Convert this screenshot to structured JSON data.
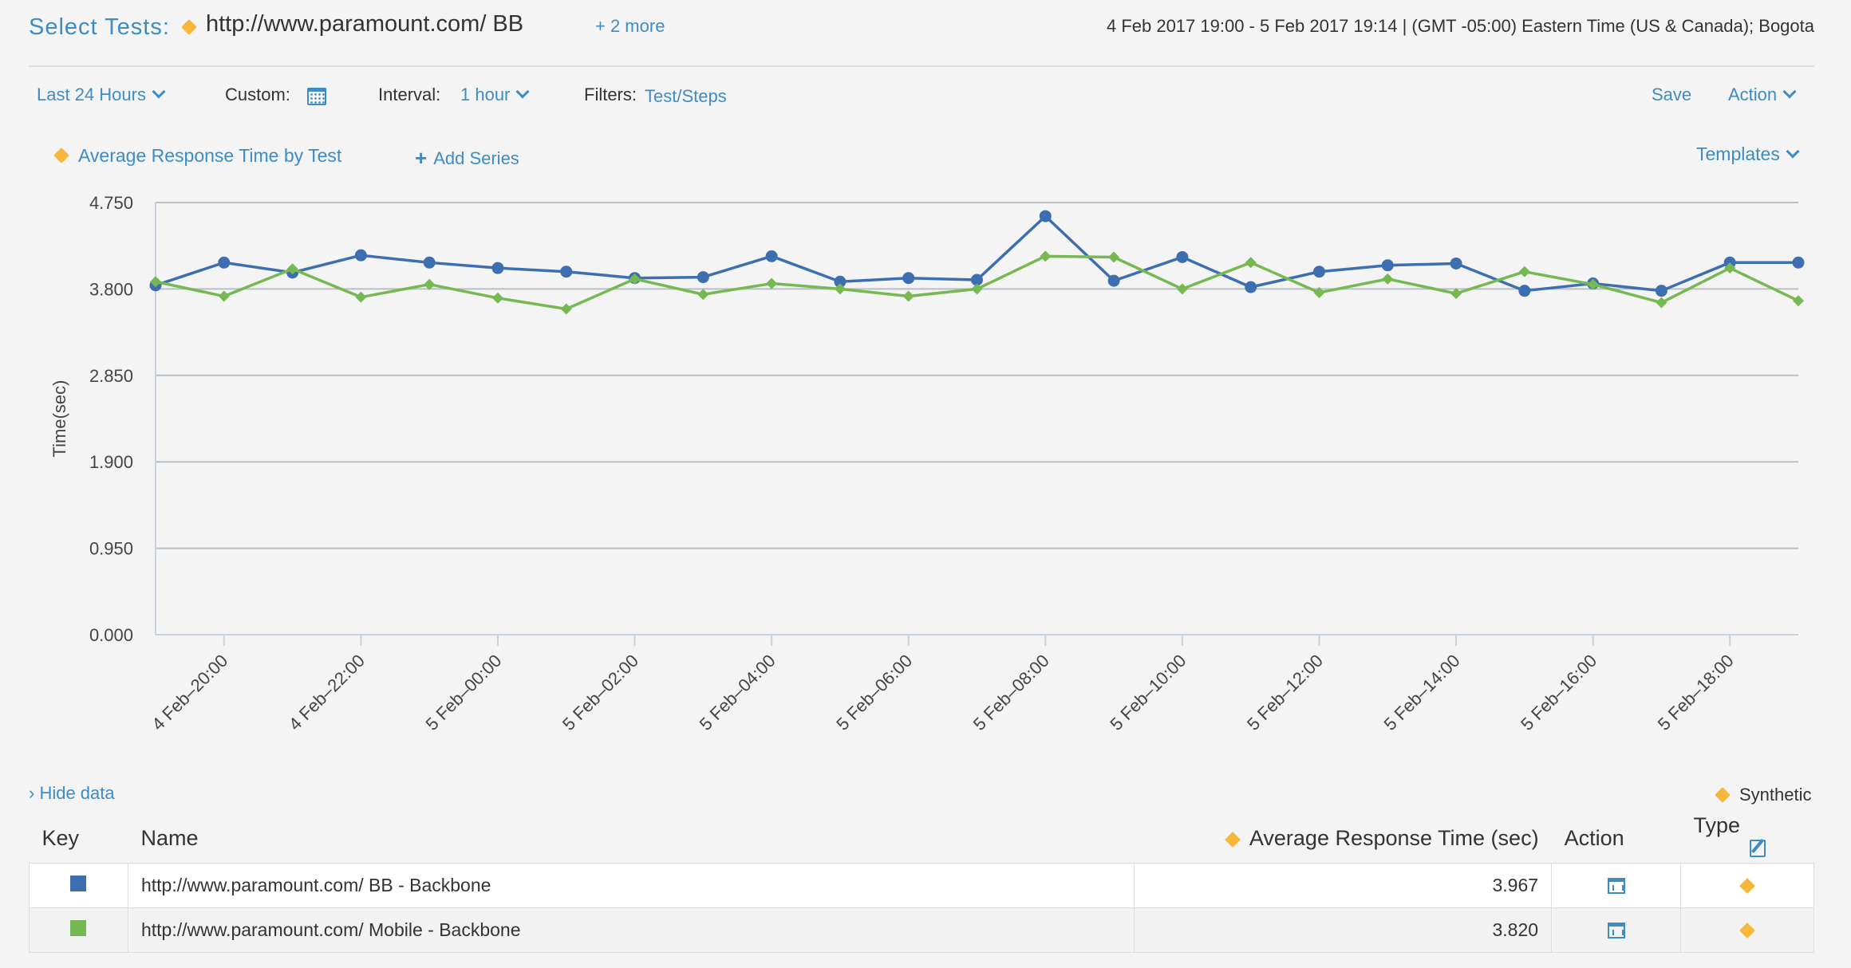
{
  "header": {
    "title_label": "Select Tests:",
    "selected_test": "http://www.paramount.com/ BB",
    "more_link": "+ 2 more",
    "date_range": "4 Feb 2017 19:00 - 5 Feb 2017 19:14  | (GMT -05:00) Eastern Time (US & Canada); Bogota"
  },
  "toolbar": {
    "range": "Last 24 Hours",
    "custom_label": "Custom:",
    "interval_label": "Interval:",
    "interval_value": "1 hour",
    "filters_label": "Filters:",
    "filters_value": "Test/Steps",
    "save": "Save",
    "action": "Action"
  },
  "series_bar": {
    "title": "Average Response Time by Test",
    "add_series": "Add Series",
    "templates": "Templates"
  },
  "chart_data": {
    "type": "line",
    "ylabel": "Time(sec)",
    "ylim": [
      0,
      4.75
    ],
    "y_ticks": [
      "0.000",
      "0.950",
      "1.900",
      "2.850",
      "3.800",
      "4.750"
    ],
    "x": [
      "19:00",
      "20:00",
      "21:00",
      "22:00",
      "23:00",
      "00:00",
      "01:00",
      "02:00",
      "03:00",
      "04:00",
      "05:00",
      "06:00",
      "07:00",
      "08:00",
      "09:00",
      "10:00",
      "11:00",
      "12:00",
      "13:00",
      "14:00",
      "15:00",
      "16:00",
      "17:00",
      "18:00",
      "19:00"
    ],
    "x_tick_labels": [
      "4 Feb–20:00",
      "4 Feb–22:00",
      "5 Feb–00:00",
      "5 Feb–02:00",
      "5 Feb–04:00",
      "5 Feb–06:00",
      "5 Feb–08:00",
      "5 Feb–10:00",
      "5 Feb–12:00",
      "5 Feb–14:00",
      "5 Feb–16:00",
      "5 Feb–18:00"
    ],
    "series": [
      {
        "color": "#3d6fb0",
        "marker": "circle",
        "values": [
          3.84,
          4.09,
          3.98,
          4.17,
          4.09,
          4.03,
          3.99,
          3.92,
          3.93,
          4.16,
          3.88,
          3.92,
          3.9,
          4.6,
          3.89,
          4.15,
          3.82,
          3.99,
          4.06,
          4.08,
          3.78,
          3.86,
          3.78,
          4.09,
          4.09
        ]
      },
      {
        "color": "#76b852",
        "marker": "diamond",
        "values": [
          3.88,
          3.72,
          4.02,
          3.71,
          3.85,
          3.7,
          3.58,
          3.91,
          3.74,
          3.86,
          3.8,
          3.72,
          3.8,
          4.16,
          4.15,
          3.8,
          4.09,
          3.76,
          3.91,
          3.75,
          3.99,
          3.85,
          3.65,
          4.03,
          3.67
        ]
      }
    ],
    "grid": true
  },
  "data_section": {
    "hide_data": "› Hide data",
    "legend_label": "Synthetic"
  },
  "table": {
    "columns": {
      "key": "Key",
      "name": "Name",
      "metric": "Average Response Time (sec)",
      "action": "Action",
      "type": "Type"
    },
    "rows": [
      {
        "color": "#3d6fb0",
        "name": "http://www.paramount.com/ BB - Backbone",
        "value": "3.967"
      },
      {
        "color": "#76b852",
        "name": "http://www.paramount.com/ Mobile - Backbone",
        "value": "3.820"
      }
    ]
  }
}
